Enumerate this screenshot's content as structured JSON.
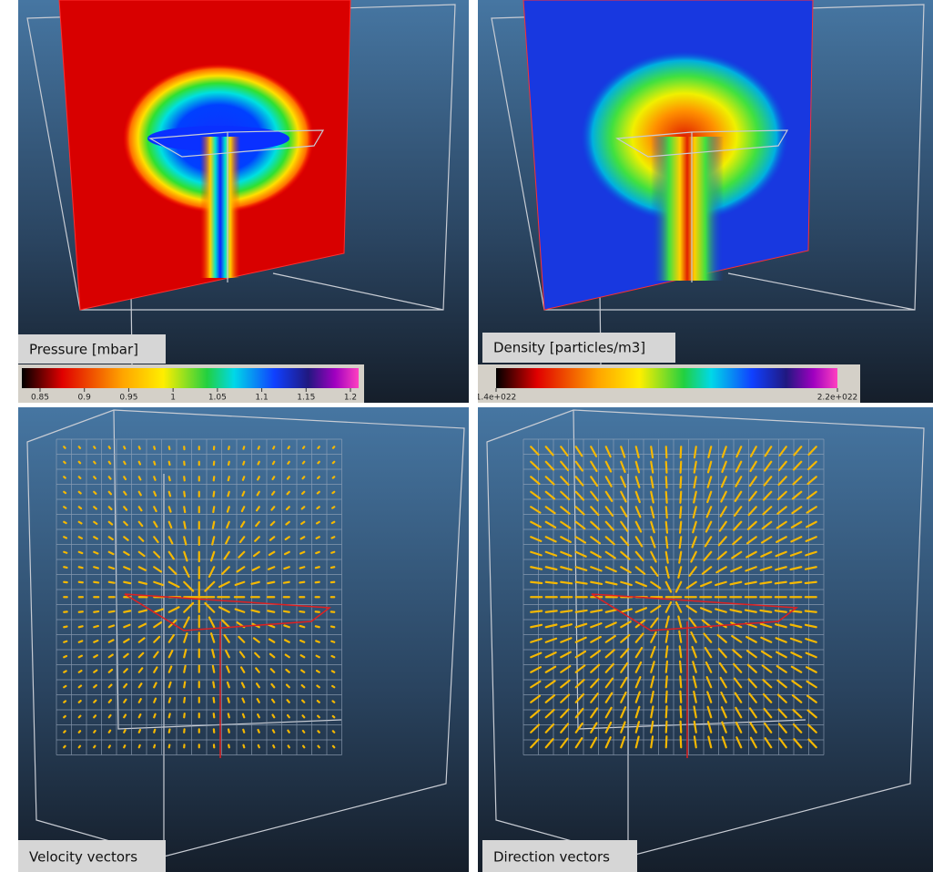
{
  "panels": [
    {
      "label": "Pressure [mbar]",
      "colorbar_ticks": [
        "0.85",
        "0.9",
        "0.95",
        "1",
        "1.05",
        "1.1",
        "1.15",
        "1.2"
      ]
    },
    {
      "label": "Density [particles/m3]",
      "colorbar_ticks": [
        "1.4e+022",
        "2.2e+022"
      ]
    },
    {
      "label": "Velocity vectors"
    },
    {
      "label": "Direction vectors"
    }
  ]
}
